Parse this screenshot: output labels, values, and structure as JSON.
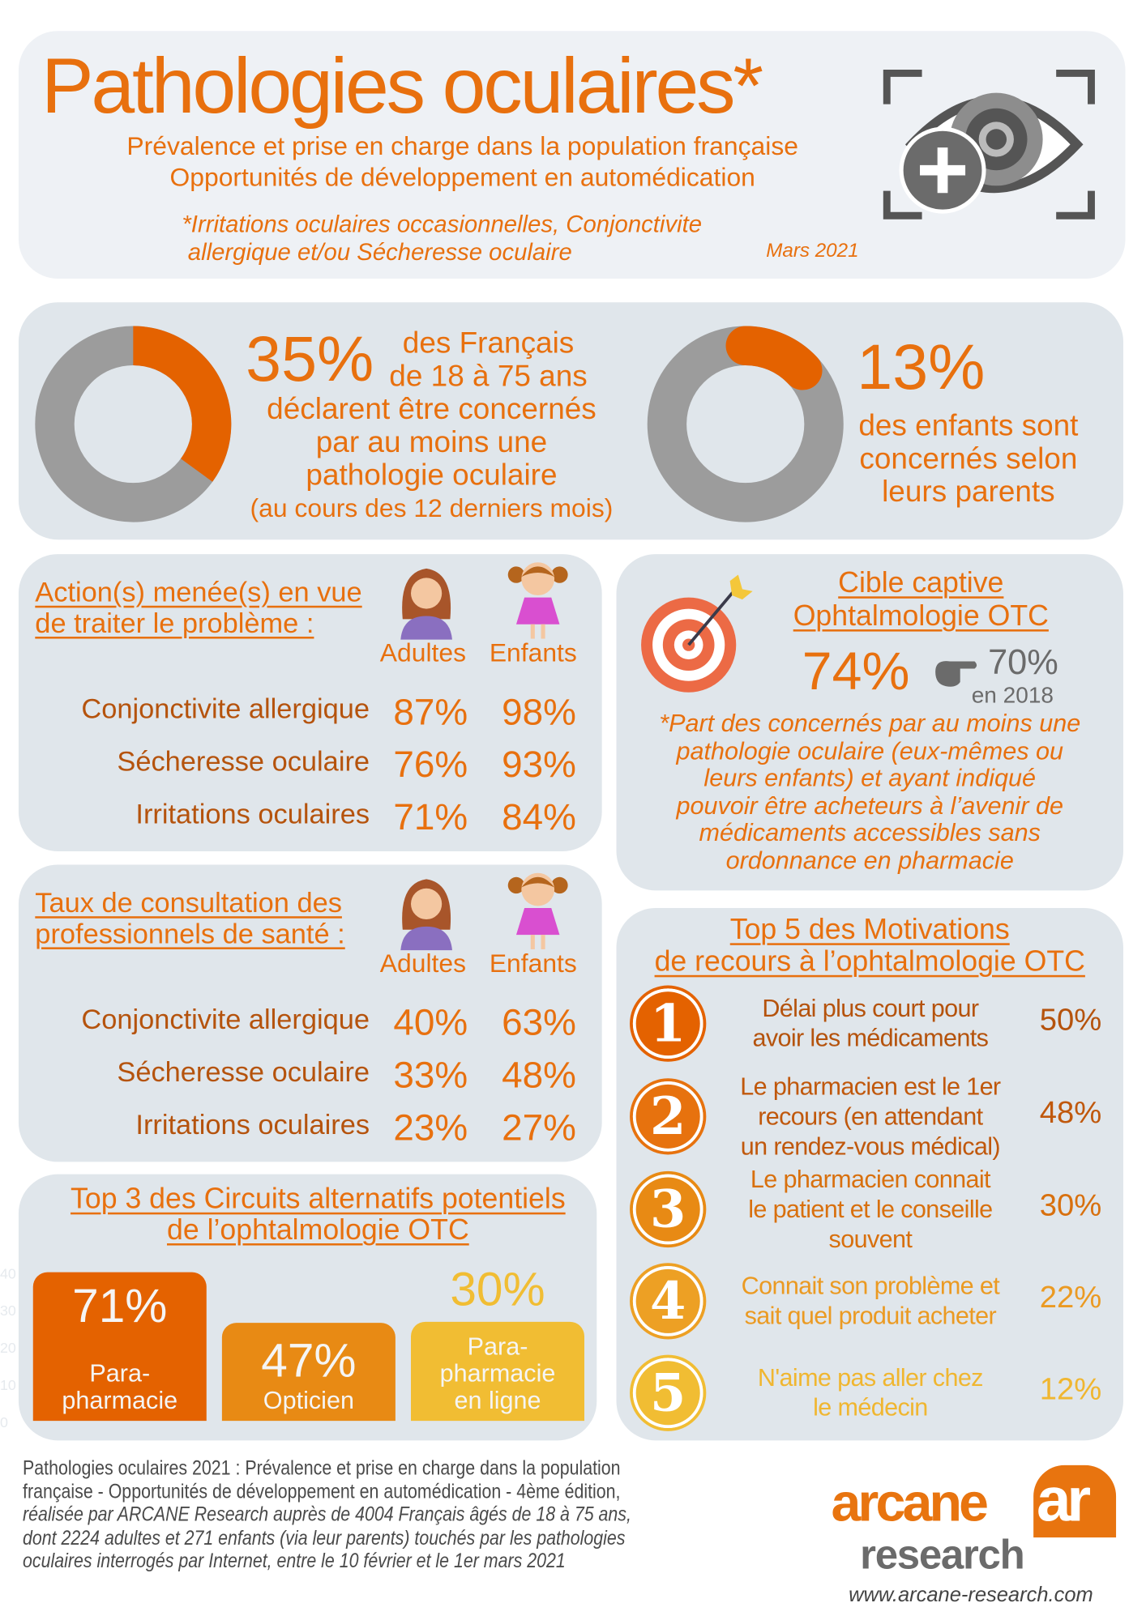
{
  "header": {
    "title": "Pathologies oculaires*",
    "subtitle1": "Prévalence et prise en charge dans la population française",
    "subtitle2": "Opportunités de développement en automédication",
    "note1": "*Irritations oculaires occasionnelles, Conjonctivite",
    "note2": "allergique et/ou Sécheresse oculaire",
    "date": "Mars 2021",
    "icon": "eye-plus-icon"
  },
  "prevalence": {
    "adults": {
      "value": 35,
      "pct": "35%",
      "l1": "des Français",
      "l2": "de 18 à 75 ans",
      "l3": "déclarent être concernés",
      "l4": "par au moins une",
      "l5": "pathologie oculaire",
      "l6": "(au cours des 12 derniers mois)"
    },
    "children": {
      "value": 13,
      "pct": "13%",
      "l1": "des enfants sont",
      "l2": "concernés selon",
      "l3": "leurs parents"
    }
  },
  "actions": {
    "title1": "Action(s) menée(s) en vue",
    "title2": "de traiter le problème :",
    "col_adults": "Adultes",
    "col_children": "Enfants",
    "rows": [
      {
        "label": "Conjonctivite allergique",
        "adults": "87%",
        "children": "98%"
      },
      {
        "label": "Sécheresse oculaire",
        "adults": "76%",
        "children": "93%"
      },
      {
        "label": "Irritations oculaires",
        "adults": "71%",
        "children": "84%"
      }
    ]
  },
  "consultation": {
    "title1": "Taux de consultation des",
    "title2": "professionnels de santé :",
    "col_adults": "Adultes",
    "col_children": "Enfants",
    "rows": [
      {
        "label": "Conjonctivite allergique",
        "adults": "40%",
        "children": "63%"
      },
      {
        "label": "Sécheresse oculaire",
        "adults": "33%",
        "children": "48%"
      },
      {
        "label": "Irritations oculaires",
        "adults": "23%",
        "children": "27%"
      }
    ]
  },
  "circuits": {
    "title1": "Top 3 des Circuits alternatifs potentiels",
    "title2": "de l’ophtalmologie OTC",
    "axis_ticks": [
      "40",
      "30",
      "20",
      "10",
      "0"
    ],
    "bars": [
      {
        "pct": "71%",
        "value": 71,
        "l1": "Para-",
        "l2": "pharmacie",
        "l3": "",
        "color": "#e46200"
      },
      {
        "pct": "47%",
        "value": 47,
        "l1": "",
        "l2": "",
        "l3": "Opticien",
        "color": "#e88a14"
      },
      {
        "pct": "30%",
        "value": 30,
        "l1": "Para-",
        "l2": "pharmacie",
        "l3": "en ligne",
        "color": "#f1bd33"
      }
    ]
  },
  "captive": {
    "title1": "Cible captive",
    "title2": "Ophtalmologie OTC",
    "pct": "74%",
    "prev_pct": "70%",
    "prev_year": "en 2018",
    "note": [
      "*Part des concernés par au moins une",
      "pathologie oculaire (eux-mêmes ou",
      "leurs enfants) et ayant indiqué",
      "pouvoir être acheteurs à l’avenir de",
      "médicaments accessibles sans",
      "ordonnance en pharmacie"
    ]
  },
  "motivations": {
    "title1": "Top 5 des Motivations",
    "title2": "de recours à l’ophtalmologie OTC",
    "items": [
      {
        "n": "1",
        "lines": [
          "Délai plus court pour",
          "avoir les médicaments"
        ],
        "pct": "50%",
        "color": "#e46200",
        "text_color": "#b5530d"
      },
      {
        "n": "2",
        "lines": [
          "Le pharmacien est le 1er",
          "recours (en attendant",
          "un rendez-vous médical)"
        ],
        "pct": "48%",
        "color": "#e7720e",
        "text_color": "#c0580c"
      },
      {
        "n": "3",
        "lines": [
          "Le pharmacien connait",
          "le patient et le conseille",
          "souvent"
        ],
        "pct": "30%",
        "color": "#e88a14",
        "text_color": "#d8700e"
      },
      {
        "n": "4",
        "lines": [
          "Connait son problème et",
          "sait quel produit acheter"
        ],
        "pct": "22%",
        "color": "#eda024",
        "text_color": "#eb9a22"
      },
      {
        "n": "5",
        "lines": [
          "N'aime pas aller chez",
          "le médecin"
        ],
        "pct": "12%",
        "color": "#f1bd33",
        "text_color": "#f0b630"
      }
    ]
  },
  "footer": {
    "lines": [
      "Pathologies oculaires 2021 : Prévalence et prise en charge dans la population",
      "française - Opportunités de développement en automédication - 4ème édition,",
      "réalisée par ARCANE Research auprès de 4004 Français âgés de 18 à 75 ans,",
      "dont 2224 adultes et 271 enfants (via leur parents) touchés par les pathologies",
      "oculaires interrogés par Internet, entre le 10 février et le 1er mars 2021"
    ],
    "logo_word1": "arcane",
    "logo_word2": "research",
    "logo_mark": "ar",
    "url": "www.arcane-research.com"
  },
  "colors": {
    "orange": "#e8700e",
    "dark_orange": "#b5530d",
    "gray": "#9c9c9c",
    "card": "#e0e6eb"
  }
}
